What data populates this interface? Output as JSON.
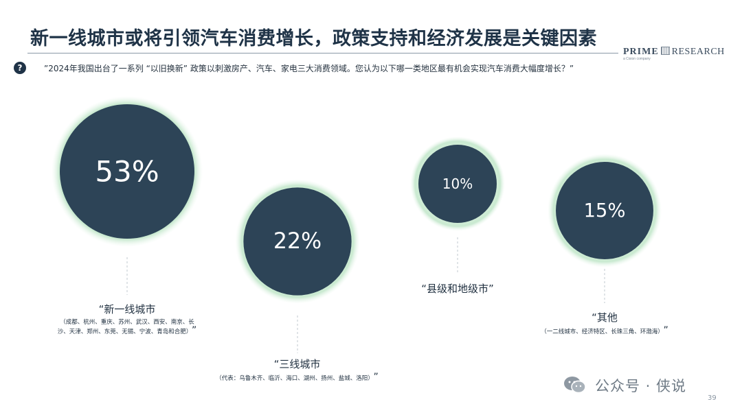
{
  "header": {
    "title": "新一线城市或将引领汽车消费增长，政策支持和经济发展是关键因素",
    "brand_primary": "PRIME",
    "brand_secondary": "RESEARCH",
    "brand_sub": "a Cision company"
  },
  "question": {
    "icon": "?",
    "text": "”2024年我国出台了一系列 “以旧换新” 政策以刺激房产、汽车、家电三大消费领域。您认为以下哪一类地区最有机会实现汽车消费大幅度增长？”"
  },
  "chart_data": {
    "type": "bubble",
    "items": [
      {
        "label": "“新一线城市",
        "value": 53,
        "value_label": "53%",
        "detail": "（成都、杭州、重庆、苏州、武汉、西安、南京、长沙、天津、郑州、东莞、无锡、宁波、青岛和合肥）",
        "close_quote": "”"
      },
      {
        "label": "“三线城市",
        "value": 22,
        "value_label": "22%",
        "detail": "（代表：乌鲁木齐、临沂、海口、湖州、扬州、盐城、洛阳）",
        "close_quote": "”"
      },
      {
        "label": "“县级和地级市”",
        "value": 10,
        "value_label": "10%",
        "detail": "",
        "close_quote": ""
      },
      {
        "label": "“其他",
        "value": 15,
        "value_label": "15%",
        "detail": "（一二线城市、经济特区、长珠三角、环渤海）",
        "close_quote": "”"
      }
    ],
    "colors": {
      "bubble": "#2d4457",
      "glow": "#c7e8cf",
      "connector": "#c2c9cf",
      "value_text": "#ffffff"
    }
  },
  "footer": {
    "watermark": "公众号 · 侠说",
    "page_number": "39"
  }
}
